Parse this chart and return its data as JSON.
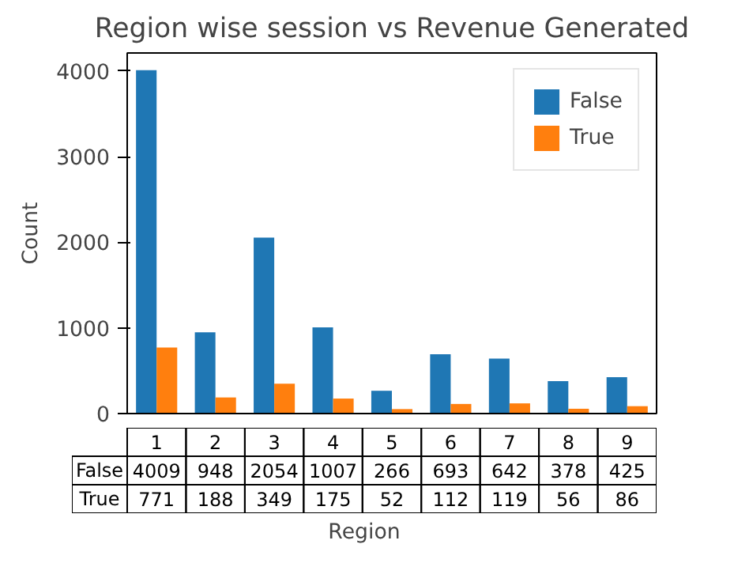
{
  "chart_data": {
    "type": "bar",
    "title": "Region wise session vs Revenue Generated",
    "xlabel": "Region",
    "ylabel": "Count",
    "categories": [
      "1",
      "2",
      "3",
      "4",
      "5",
      "6",
      "7",
      "8",
      "9"
    ],
    "series": [
      {
        "name": "False",
        "color": "#1f77b4",
        "values": [
          4009,
          948,
          2054,
          1007,
          266,
          693,
          642,
          378,
          425
        ]
      },
      {
        "name": "True",
        "color": "#ff7f0e",
        "values": [
          771,
          188,
          349,
          175,
          52,
          112,
          119,
          56,
          86
        ]
      }
    ],
    "ylim": [
      0,
      4210
    ],
    "yticks": [
      0,
      1000,
      2000,
      3000,
      4000
    ],
    "legend": "top right",
    "data_labels": true
  }
}
